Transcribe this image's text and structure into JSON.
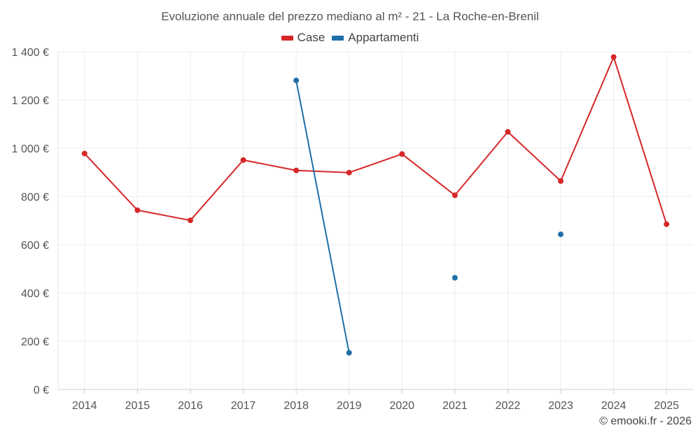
{
  "chart_data": {
    "type": "line",
    "title": "Evoluzione annuale del prezzo mediano al m² - 21 - La Roche-en-Brenil",
    "xlabel": "",
    "ylabel": "",
    "categories": [
      "2014",
      "2015",
      "2016",
      "2017",
      "2018",
      "2019",
      "2020",
      "2021",
      "2022",
      "2023",
      "2024",
      "2025"
    ],
    "ylim": [
      0,
      1400
    ],
    "yticks": [
      0,
      200,
      400,
      600,
      800,
      1000,
      1200,
      1400
    ],
    "ytick_labels": [
      "0 €",
      "200 €",
      "400 €",
      "600 €",
      "800 €",
      "1 000 €",
      "1 200 €",
      "1 400 €"
    ],
    "grid": true,
    "legend_position": "top-center",
    "series": [
      {
        "name": "Case",
        "color": "#d62728",
        "values": [
          978,
          743,
          701,
          951,
          908,
          899,
          976,
          805,
          1068,
          864,
          1378,
          685
        ]
      },
      {
        "name": "Appartamenti",
        "color": "#1f6fa8",
        "values": [
          null,
          null,
          null,
          null,
          1281,
          152,
          null,
          463,
          null,
          643,
          null,
          null
        ]
      }
    ]
  },
  "credit": "© emooki.fr - 2026"
}
